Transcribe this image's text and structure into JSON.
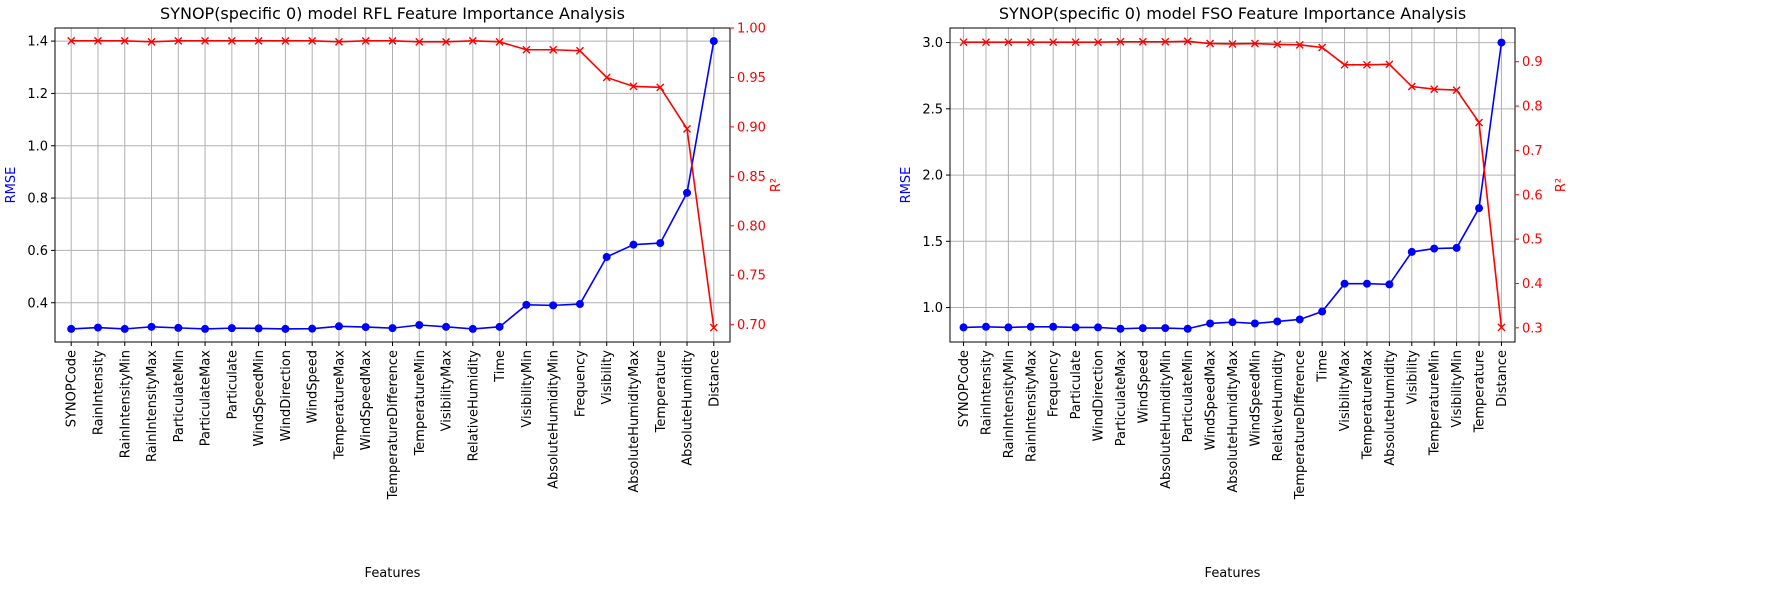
{
  "chart_data": [
    {
      "type": "line",
      "title": "SYNOP(specific 0) model RFL Feature Importance Analysis",
      "xlabel": "Features",
      "ylabel_left": "RMSE",
      "ylabel_right": "R²",
      "categories": [
        "SYNOPCode",
        "RainIntensity",
        "RainIntensityMin",
        "RainIntensityMax",
        "ParticulateMin",
        "ParticulateMax",
        "Particulate",
        "WindSpeedMin",
        "WindDirection",
        "WindSpeed",
        "TemperatureMax",
        "WindSpeedMax",
        "TemperatureDifference",
        "TemperatureMin",
        "VisibilityMax",
        "RelativeHumidity",
        "Time",
        "VisibilityMin",
        "AbsoluteHumidityMin",
        "Frequency",
        "Visibility",
        "AbsoluteHumidityMax",
        "Temperature",
        "AbsoluteHumidity",
        "Distance"
      ],
      "ylim_left": [
        0.25,
        1.45
      ],
      "yticks_left": [
        0.4,
        0.6,
        0.8,
        1.0,
        1.2,
        1.4
      ],
      "ylim_right": [
        0.6825,
        1.0
      ],
      "yticks_right": [
        0.7,
        0.75,
        0.8,
        0.85,
        0.9,
        0.95,
        1.0
      ],
      "grid": true,
      "series": [
        {
          "name": "RMSE",
          "axis": "left",
          "color": "#0000ff",
          "marker": "circle",
          "values": [
            0.3,
            0.305,
            0.3,
            0.308,
            0.304,
            0.3,
            0.303,
            0.302,
            0.3,
            0.301,
            0.31,
            0.307,
            0.303,
            0.315,
            0.308,
            0.3,
            0.308,
            0.392,
            0.39,
            0.395,
            0.575,
            0.622,
            0.628,
            0.82,
            1.4
          ]
        },
        {
          "name": "R²",
          "axis": "right",
          "color": "#ff0000",
          "marker": "x",
          "values": [
            0.987,
            0.987,
            0.987,
            0.986,
            0.987,
            0.987,
            0.987,
            0.987,
            0.987,
            0.987,
            0.986,
            0.987,
            0.987,
            0.986,
            0.986,
            0.987,
            0.986,
            0.978,
            0.978,
            0.977,
            0.95,
            0.941,
            0.94,
            0.898,
            0.697
          ]
        }
      ]
    },
    {
      "type": "line",
      "title": "SYNOP(specific 0) model FSO Feature Importance Analysis",
      "xlabel": "Features",
      "ylabel_left": "RMSE",
      "ylabel_right": "R²",
      "categories": [
        "SYNOPCode",
        "RainIntensity",
        "RainIntensityMin",
        "RainIntensityMax",
        "Frequency",
        "Particulate",
        "WindDirection",
        "ParticulateMax",
        "WindSpeed",
        "AbsoluteHumidityMin",
        "ParticulateMin",
        "WindSpeedMax",
        "AbsoluteHumidityMax",
        "WindSpeedMin",
        "RelativeHumidity",
        "TemperatureDifference",
        "Time",
        "VisibilityMax",
        "TemperatureMax",
        "AbsoluteHumidity",
        "Visibility",
        "TemperatureMin",
        "VisibilityMin",
        "Temperature",
        "Distance"
      ],
      "ylim_left": [
        0.74,
        3.11
      ],
      "yticks_left": [
        1.0,
        1.5,
        2.0,
        2.5,
        3.0
      ],
      "ylim_right": [
        0.268,
        0.976
      ],
      "yticks_right": [
        0.3,
        0.4,
        0.5,
        0.6,
        0.7,
        0.8,
        0.9
      ],
      "grid": true,
      "series": [
        {
          "name": "RMSE",
          "axis": "left",
          "color": "#0000ff",
          "marker": "circle",
          "values": [
            0.85,
            0.855,
            0.85,
            0.855,
            0.855,
            0.85,
            0.85,
            0.84,
            0.845,
            0.845,
            0.84,
            0.88,
            0.89,
            0.88,
            0.895,
            0.91,
            0.97,
            1.18,
            1.18,
            1.175,
            1.42,
            1.445,
            1.45,
            1.75,
            3.0
          ]
        },
        {
          "name": "R²",
          "axis": "right",
          "color": "#ff0000",
          "marker": "x",
          "values": [
            0.944,
            0.944,
            0.944,
            0.944,
            0.944,
            0.944,
            0.944,
            0.945,
            0.945,
            0.945,
            0.946,
            0.941,
            0.94,
            0.941,
            0.939,
            0.938,
            0.932,
            0.893,
            0.893,
            0.894,
            0.844,
            0.838,
            0.836,
            0.763,
            0.301
          ]
        }
      ]
    }
  ]
}
